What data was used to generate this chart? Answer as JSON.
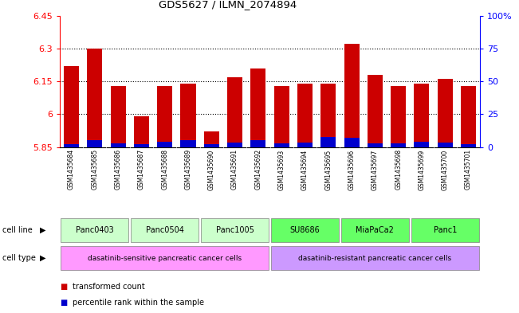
{
  "title": "GDS5627 / ILMN_2074894",
  "samples": [
    "GSM1435684",
    "GSM1435685",
    "GSM1435686",
    "GSM1435687",
    "GSM1435688",
    "GSM1435689",
    "GSM1435690",
    "GSM1435691",
    "GSM1435692",
    "GSM1435693",
    "GSM1435694",
    "GSM1435695",
    "GSM1435696",
    "GSM1435697",
    "GSM1435698",
    "GSM1435699",
    "GSM1435700",
    "GSM1435701"
  ],
  "transformed_count": [
    6.22,
    6.3,
    6.13,
    5.99,
    6.13,
    6.14,
    5.92,
    6.17,
    6.21,
    6.13,
    6.14,
    6.14,
    6.32,
    6.18,
    6.13,
    6.14,
    6.16,
    6.13
  ],
  "percentile_rank": [
    2.5,
    5.0,
    3.0,
    2.0,
    4.0,
    5.5,
    2.5,
    3.5,
    5.0,
    3.0,
    3.5,
    8.0,
    7.0,
    3.0,
    3.0,
    4.0,
    3.5,
    2.5
  ],
  "ymin": 5.85,
  "ymax": 6.45,
  "y_ticks": [
    5.85,
    6.0,
    6.15,
    6.3,
    6.45
  ],
  "y_tick_labels": [
    "5.85",
    "6",
    "6.15",
    "6.3",
    "6.45"
  ],
  "y2min": 0,
  "y2max": 100,
  "y2_ticks": [
    0,
    25,
    50,
    75,
    100
  ],
  "y2_tick_labels": [
    "0",
    "25",
    "50",
    "75",
    "100%"
  ],
  "bar_color_red": "#cc0000",
  "bar_color_blue": "#0000cc",
  "bar_width": 0.65,
  "cell_lines": [
    {
      "label": "Panc0403",
      "start": 0,
      "end": 3,
      "color": "#ccffcc"
    },
    {
      "label": "Panc0504",
      "start": 3,
      "end": 6,
      "color": "#ccffcc"
    },
    {
      "label": "Panc1005",
      "start": 6,
      "end": 9,
      "color": "#ccffcc"
    },
    {
      "label": "SU8686",
      "start": 9,
      "end": 12,
      "color": "#66ff66"
    },
    {
      "label": "MiaPaCa2",
      "start": 12,
      "end": 15,
      "color": "#66ff66"
    },
    {
      "label": "Panc1",
      "start": 15,
      "end": 18,
      "color": "#66ff66"
    }
  ],
  "cell_types": [
    {
      "label": "dasatinib-sensitive pancreatic cancer cells",
      "start": 0,
      "end": 9,
      "color": "#ff99ff"
    },
    {
      "label": "dasatinib-resistant pancreatic cancer cells",
      "start": 9,
      "end": 18,
      "color": "#cc99ff"
    }
  ],
  "legend_red": "transformed count",
  "legend_blue": "percentile rank within the sample",
  "cell_line_label": "cell line",
  "cell_type_label": "cell type",
  "sample_bg_color": "#d3d3d3"
}
